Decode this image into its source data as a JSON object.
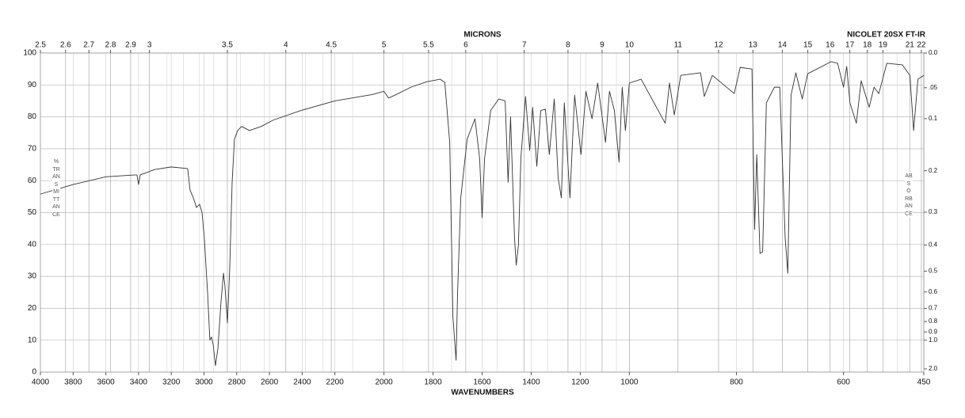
{
  "chart_data": {
    "type": "line",
    "instrument": "NICOLET 20SX FT-IR",
    "x2label": "MICRONS",
    "xlabel": "WAVENUMBERS",
    "ylabel": "%TRANSMITTANCE",
    "y2label": "ABSORBANCE",
    "color": "#333333",
    "grid": true,
    "xlim": [
      4000,
      450
    ],
    "ylim": [
      0,
      100
    ],
    "xticks": [
      4000,
      3800,
      3600,
      3400,
      3200,
      3000,
      2800,
      2600,
      2400,
      2200,
      2000,
      1800,
      1600,
      1400,
      1200,
      1000,
      800,
      600,
      450
    ],
    "yticks": [
      0,
      10,
      20,
      30,
      40,
      50,
      60,
      70,
      80,
      90,
      100
    ],
    "x2ticks": [
      2.5,
      2.6,
      2.7,
      2.8,
      2.9,
      3,
      3.5,
      4,
      4.5,
      5,
      5.5,
      6,
      7,
      8,
      9,
      10,
      11,
      12,
      13,
      14,
      15,
      16,
      17,
      18,
      19,
      21,
      22
    ],
    "x2_minor_ticks": [
      3.1,
      3.2,
      3.3,
      3.4,
      3.6,
      3.8,
      4.2,
      4.4,
      4.7,
      5.2,
      5.8,
      6.5,
      7.5,
      8.5,
      9.5,
      20
    ],
    "y2ticks": [
      {
        "value": 0,
        "label": "0.0"
      },
      {
        "value": 0.05,
        "label": ".05"
      },
      0.1,
      0.2,
      0.3,
      0.4,
      0.5,
      0.6,
      0.7,
      0.8,
      0.9,
      {
        "value": 1,
        "label": "1.0"
      },
      {
        "value": 2,
        "label": "2.0"
      }
    ],
    "x": [
      4000,
      3800,
      3600,
      3420,
      3410,
      3400,
      3390,
      3300,
      3200,
      3100,
      3085,
      3065,
      3046,
      3027,
      3012,
      2998,
      2978,
      2964,
      2954,
      2944,
      2930,
      2915,
      2896,
      2881,
      2872,
      2857,
      2843,
      2828,
      2814,
      2794,
      2770,
      2722,
      2650,
      2576,
      2407,
      2200,
      2048,
      2000,
      1981,
      1955,
      1890,
      1826,
      1771,
      1752,
      1732,
      1719,
      1706,
      1700,
      1687,
      1661,
      1629,
      1610,
      1600,
      1590,
      1565,
      1532,
      1506,
      1494,
      1484,
      1468,
      1461,
      1452,
      1442,
      1423,
      1406,
      1394,
      1377,
      1361,
      1342,
      1326,
      1306,
      1290,
      1277,
      1265,
      1242,
      1223,
      1197,
      1177,
      1152,
      1129,
      1097,
      1081,
      1061,
      1042,
      1029,
      1016,
      1000,
      978,
      933,
      925,
      916,
      904,
      867,
      860,
      845,
      804,
      793,
      771,
      766,
      762,
      756,
      751,
      744,
      729,
      719,
      709,
      704,
      698,
      689,
      677,
      667,
      623,
      611,
      600,
      594,
      588,
      576,
      567,
      552,
      543,
      534,
      519,
      490,
      476,
      469,
      461,
      450
    ],
    "values": [
      55.8,
      58.8,
      61.2,
      61.8,
      61.8,
      58.8,
      61.8,
      63.5,
      64.3,
      63.8,
      57,
      54.6,
      51.6,
      52.6,
      50,
      42,
      24.8,
      10,
      11,
      8.7,
      2,
      7.4,
      22,
      31,
      27,
      15.4,
      32,
      59.5,
      73,
      75.7,
      77,
      75.7,
      77,
      79,
      82,
      85,
      87,
      88,
      85.9,
      86.8,
      89.3,
      91,
      91.8,
      90.8,
      72,
      17.4,
      3.7,
      24.8,
      54.6,
      73,
      79.4,
      67,
      48.4,
      67,
      82,
      85.6,
      85,
      59.5,
      80,
      42.2,
      33.5,
      39.7,
      67,
      86.4,
      69.5,
      83,
      64.5,
      82,
      82.4,
      68.2,
      85.6,
      60.8,
      54.6,
      84.4,
      54.6,
      86.8,
      68.2,
      88,
      79.4,
      90.6,
      72,
      88,
      82,
      65.8,
      89.3,
      75.7,
      90.6,
      91.8,
      78,
      90.6,
      80.6,
      93,
      93.8,
      86.4,
      93,
      87.3,
      95.5,
      95,
      44.7,
      68.2,
      37.2,
      37.7,
      84.4,
      89.3,
      89.3,
      42.2,
      31,
      86.8,
      93.8,
      85.6,
      93.5,
      97.3,
      96.8,
      89.3,
      95.8,
      84.4,
      78,
      91.3,
      83,
      89.3,
      87.3,
      96.8,
      96.3,
      93,
      75.7,
      91.8,
      93
    ]
  }
}
